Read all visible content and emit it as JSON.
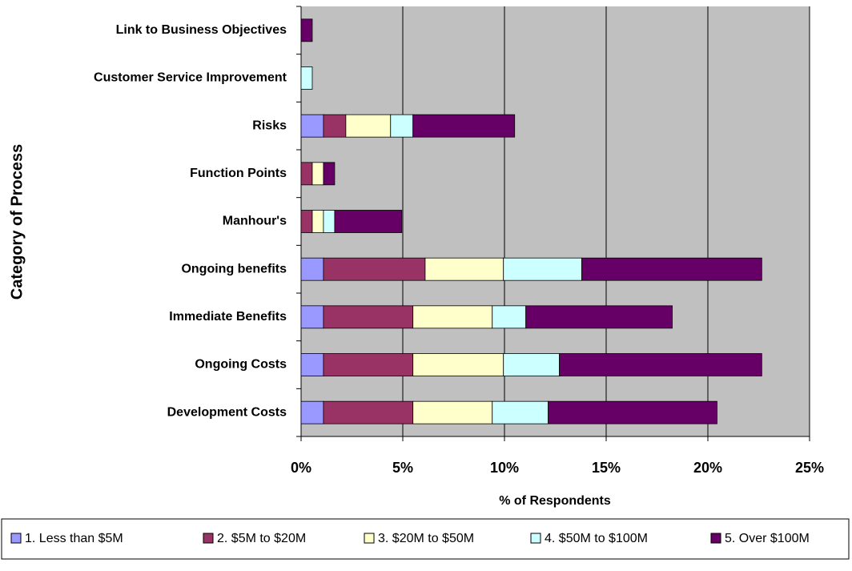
{
  "chart_data": {
    "type": "stacked-bar-horizontal",
    "x_label": "% of Respondents",
    "y_label": "Category of Process",
    "categories": [
      "Link to Business Objectives",
      "Customer Service Improvement",
      "Risks",
      "Function Points",
      "Manhour's",
      "Ongoing benefits",
      "Immediate Benefits",
      "Ongoing Costs",
      "Development Costs"
    ],
    "series": [
      {
        "name": "1. Less than $5M",
        "color": "#9999ff",
        "values": [
          0,
          0,
          1.1,
          0,
          0,
          1.1,
          1.1,
          1.1,
          1.1
        ]
      },
      {
        "name": "2. $5M to $20M",
        "color": "#993366",
        "values": [
          0,
          0,
          1.1,
          0.55,
          0.55,
          5.0,
          4.4,
          4.4,
          4.4
        ]
      },
      {
        "name": "3. $20M to $50M",
        "color": "#ffffcc",
        "values": [
          0,
          0,
          2.2,
          0.55,
          0.55,
          3.85,
          3.9,
          4.45,
          3.9
        ]
      },
      {
        "name": "4. $50M to $100M",
        "color": "#ccffff",
        "values": [
          0,
          0.55,
          1.1,
          0,
          0.55,
          3.85,
          1.65,
          2.75,
          2.75
        ]
      },
      {
        "name": "5. Over $100M",
        "color": "#660066",
        "values": [
          0.55,
          0,
          5.0,
          0.55,
          3.3,
          8.85,
          7.2,
          9.95,
          8.3
        ]
      }
    ],
    "xlim": [
      0,
      25
    ],
    "xticks": [
      {
        "value": 0,
        "label": "0%"
      },
      {
        "value": 5,
        "label": "5%"
      },
      {
        "value": 10,
        "label": "10%"
      },
      {
        "value": 15,
        "label": "15%"
      },
      {
        "value": 20,
        "label": "20%"
      },
      {
        "value": 25,
        "label": "25%"
      }
    ],
    "grid": true,
    "plot_background": "#c0c0c0",
    "legend": "bottom"
  }
}
